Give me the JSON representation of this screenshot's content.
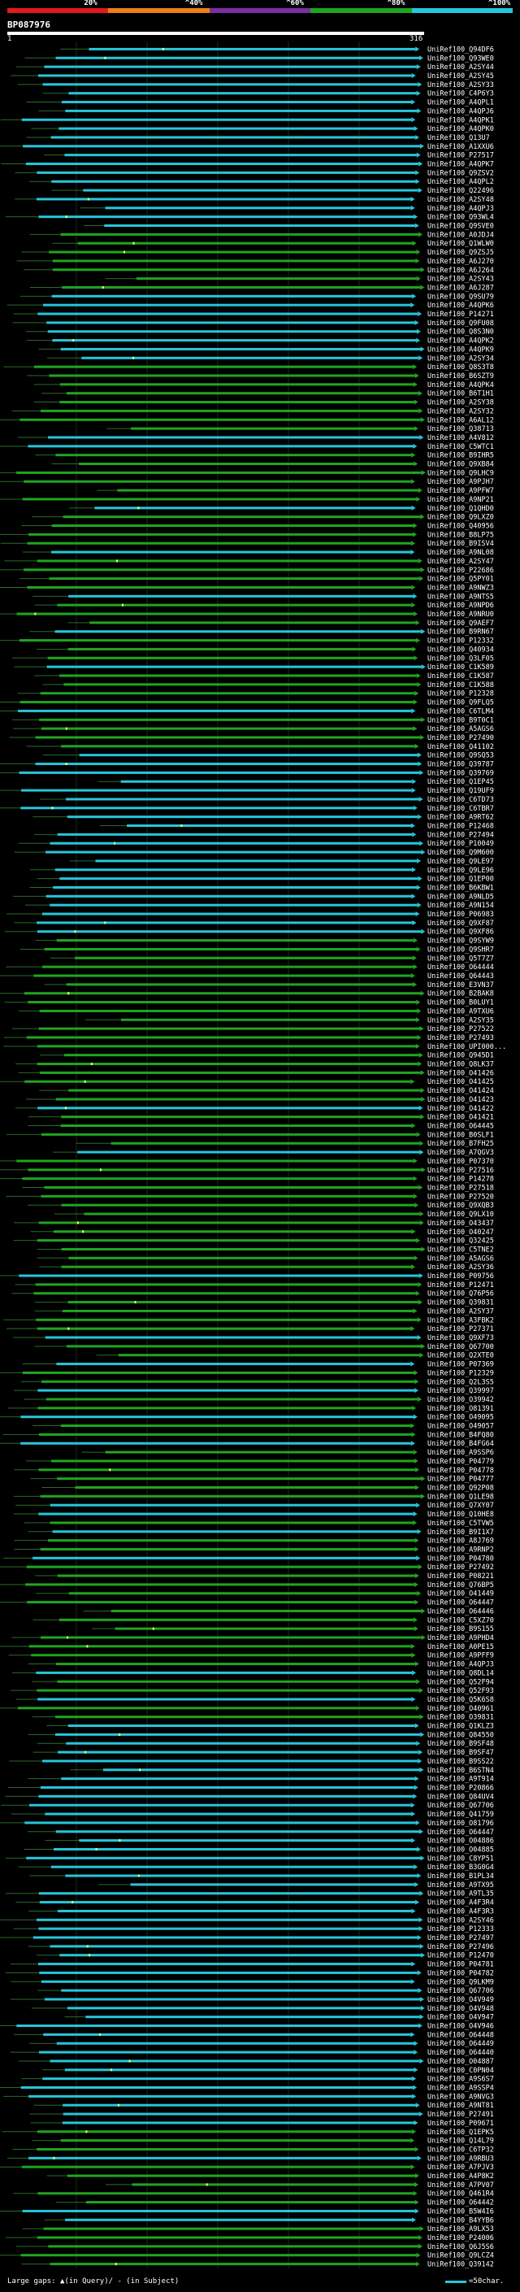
{
  "header": {
    "query_id": "BP087976",
    "start_label": "1",
    "end_label": "316"
  },
  "legend": {
    "segments": [
      {
        "label": "20%",
        "color": "#e31a1c"
      },
      {
        "label": "^40%",
        "color": "#ef7d1a"
      },
      {
        "label": "^60%",
        "color": "#7b2fa6"
      },
      {
        "label": "^80%",
        "color": "#1fa51f"
      },
      {
        "label": "^100%",
        "color": "#26c6da"
      }
    ]
  },
  "footer": {
    "gaps_text": "Large gaps: ▲(in Query)/ - (in Subject)",
    "scale_text": "=50char."
  },
  "colors": {
    "cyan": "#26c6da",
    "green": "#1fa51f",
    "connector": "#1f4a8a",
    "gap_marker": "#ffff66"
  },
  "hits": [
    "UniRef100_Q94DF6",
    "UniRef100_Q93WE0",
    "UniRef100_A2SY44",
    "UniRef100_A2SY45",
    "UniRef100_A2SY33",
    "UniRef100_C4P6Y3",
    "UniRef100_A4QPL1",
    "UniRef100_A4QPJ6",
    "UniRef100_A4QPK1",
    "UniRef100_A4QPK0",
    "UniRef100_Q13U7",
    "UniRef100_A1XXU6",
    "UniRef100_P27517",
    "UniRef100_A4QPK7",
    "UniRef100_Q9ZSV2",
    "UniRef100_A4QPL2",
    "UniRef100_Q22496",
    "UniRef100_A2SY48",
    "UniRef100_A4QPJ3",
    "UniRef100_Q93WL4",
    "UniRef100_Q9SVE0",
    "UniRef100_A0JDJ4",
    "UniRef100_Q1WLW0",
    "UniRef100_Q9ZSJ5",
    "UniRef100_A6J270",
    "UniRef100_A6J264",
    "UniRef100_A2SY43",
    "UniRef100_A6J287",
    "UniRef100_Q9SU79",
    "UniRef100_A4QPK6",
    "UniRef100_P14271",
    "UniRef100_Q9FU08",
    "UniRef100_Q8S3N0",
    "UniRef100_A4QPK2",
    "UniRef100_A4QPK9",
    "UniRef100_A2SY34",
    "UniRef100_Q8S3T8",
    "UniRef100_B6SZT9",
    "UniRef100_A4QPK4",
    "UniRef100_B6T1H1",
    "UniRef100_A2SY38",
    "UniRef100_A2SY32",
    "UniRef100_A6AL12",
    "UniRef100_Q38713",
    "UniRef100_A4V812",
    "UniRef100_C5WTC1",
    "UniRef100_B9IHR5",
    "UniRef100_Q9XB84",
    "UniRef100_Q9LHC9",
    "UniRef100_A9PJH7",
    "UniRef100_A9PFW7",
    "UniRef100_A9NP21",
    "UniRef100_Q1QHD0",
    "UniRef100_Q9LXZ0",
    "UniRef100_Q40956",
    "UniRef100_B8LP75",
    "UniRef100_B9ISV4",
    "UniRef100_A9NL08",
    "UniRef100_A2SY47",
    "UniRef100_P22686",
    "UniRef100_Q5PY01",
    "UniRef100_A9NWZ3",
    "UniRef100_A9NTS5",
    "UniRef100_A9NPD6",
    "UniRef100_A9NRU0",
    "UniRef100_Q9AEF7",
    "UniRef100_B9RN67",
    "UniRef100_P12332",
    "UniRef100_Q40934",
    "UniRef100_Q3LF05",
    "UniRef100_C1K589",
    "UniRef100_C1K587",
    "UniRef100_C1K588",
    "UniRef100_P12328",
    "UniRef100_Q9FLQ5",
    "UniRef100_C6TLM4",
    "UniRef100_B9T0C1",
    "UniRef100_A5AGS6",
    "UniRef100_P27490",
    "UniRef100_Q41102",
    "UniRef100_Q9SQ53",
    "UniRef100_Q39787",
    "UniRef100_Q39769",
    "UniRef100_Q1EP45",
    "UniRef100_Q19UF9",
    "UniRef100_C6TD73",
    "UniRef100_C6TBR7",
    "UniRef100_A9RT62",
    "UniRef100_P12468",
    "UniRef100_P27494",
    "UniRef100_P10049",
    "UniRef100_Q9M600",
    "UniRef100_Q9LE97",
    "UniRef100_Q9LE96",
    "UniRef100_Q1EP00",
    "UniRef100_B6KBW1",
    "UniRef100_A9NLD5",
    "UniRef100_A9N154",
    "UniRef100_P06983",
    "UniRef100_Q9XF87",
    "UniRef100_Q9XF86",
    "UniRef100_Q9SYW9",
    "UniRef100_Q9SHR7",
    "UniRef100_Q5T7Z7",
    "UniRef100_O64444",
    "UniRef100_Q64443",
    "UniRef100_E3VN37",
    "UniRef100_B2BAK8",
    "UniRef100_B0LUY1",
    "UniRef100_A9TXU6",
    "UniRef100_A2SY35",
    "UniRef100_P27522",
    "UniRef100_P27493",
    "UniRef100_UPI000...",
    "UniRef100_Q945D1",
    "UniRef100_Q8LK37",
    "UniRef100_O41426",
    "UniRef100_O41425",
    "UniRef100_O41424",
    "UniRef100_O41423",
    "UniRef100_O41422",
    "UniRef100_O41421",
    "UniRef100_O64445",
    "UniRef100_B0SLF1",
    "UniRef100_B7FH25",
    "UniRef100_A7QGV3",
    "UniRef100_P07370",
    "UniRef100_P27516",
    "UniRef100_P14278",
    "UniRef100_P27518",
    "UniRef100_P27520",
    "UniRef100_Q9XQB3",
    "UniRef100_Q9LX10",
    "UniRef100_O43437",
    "UniRef100_O40247",
    "UniRef100_Q32425",
    "UniRef100_C5TNE2",
    "UniRef100_A5AGS6",
    "UniRef100_A2SY36",
    "UniRef100_P09756",
    "UniRef100_P12471",
    "UniRef100_Q76P56",
    "UniRef100_Q39831",
    "UniRef100_A2SY37",
    "UniRef100_A3FBK2",
    "UniRef100_P27371",
    "UniRef100_Q9XF73",
    "UniRef100_Q67700",
    "UniRef100_Q2XTE0",
    "UniRef100_P07369",
    "UniRef100_P12329",
    "UniRef100_Q2L3S5",
    "UniRef100_Q39997",
    "UniRef100_O39942",
    "UniRef100_O81391",
    "UniRef100_O49095",
    "UniRef100_O49057",
    "UniRef100_B4FQ80",
    "UniRef100_B4FG64",
    "UniRef100_A9SSP6",
    "UniRef100_P04779",
    "UniRef100_P04778",
    "UniRef100_P04777",
    "UniRef100_Q92P08",
    "UniRef100_Q1LE98",
    "UniRef100_Q7XY07",
    "UniRef100_Q10HE8",
    "UniRef100_C5TVW5",
    "UniRef100_B9I1X7",
    "UniRef100_A8J769",
    "UniRef100_A9RNP2",
    "UniRef100_P04780",
    "UniRef100_P27492",
    "UniRef100_P08221",
    "UniRef100_Q76BP5",
    "UniRef100_O41449",
    "UniRef100_O64447",
    "UniRef100_O64446",
    "UniRef100_C5XZ70",
    "UniRef100_B9S155",
    "UniRef100_A9PHD4",
    "UniRef100_A0PE15",
    "UniRef100_A9PFF9",
    "UniRef100_A4QPJ3",
    "UniRef100_Q8DL14",
    "UniRef100_Q52F94",
    "UniRef100_Q52F93",
    "UniRef100_Q5K6S8",
    "UniRef100_O40961",
    "UniRef100_O39831",
    "UniRef100_Q1KLZ3",
    "UniRef100_Q84550",
    "UniRef100_B9SF48",
    "UniRef100_B9SF47",
    "UniRef100_B9SS22",
    "UniRef100_B6STN4",
    "UniRef100_A9T914",
    "UniRef100_P20866",
    "UniRef100_Q84UV4",
    "UniRef100_Q67706",
    "UniRef100_Q41759",
    "UniRef100_O81796",
    "UniRef100_O64447",
    "UniRef100_O04886",
    "UniRef100_O04885",
    "UniRef100_C8YP51",
    "UniRef100_B3G0G4",
    "UniRef100_B1PL34",
    "UniRef100_A9TX95",
    "UniRef100_A9TL35",
    "UniRef100_A4F3R4",
    "UniRef100_A4F3R3",
    "UniRef100_A2SY46",
    "UniRef100_P12333",
    "UniRef100_P27497",
    "UniRef100_P27496",
    "UniRef100_P12470",
    "UniRef100_P04781",
    "UniRef100_P04782",
    "UniRef100_Q9LKM9",
    "UniRef100_Q67706",
    "UniRef100_O4V949",
    "UniRef100_O4V948",
    "UniRef100_O4V947",
    "UniRef100_O4V946",
    "UniRef100_O64448",
    "UniRef100_O64449",
    "UniRef100_O64440",
    "UniRef100_O04887",
    "UniRef100_C0PN04",
    "UniRef100_A9S6S7",
    "UniRef100_A9SSP4",
    "UniRef100_A9NVG3",
    "UniRef100_A9NT81",
    "UniRef100_P27491",
    "UniRef100_P09671",
    "UniRef100_Q1EPK5",
    "UniRef100_Q14L79",
    "UniRef100_C6TP32",
    "UniRef100_A9RBU3",
    "UniRef100_A7PJV3",
    "UniRef100_A4P8K2",
    "UniRef100_A7PV07",
    "UniRef100_Q461R4",
    "UniRef100_O64442",
    "UniRef100_B5W4I6",
    "UniRef100_B4YYB6",
    "UniRef100_A9LX53",
    "UniRef100_P24006",
    "UniRef100_Q6J5S6",
    "UniRef100_Q9LCZ4",
    "UniRef100_Q39142"
  ]
}
